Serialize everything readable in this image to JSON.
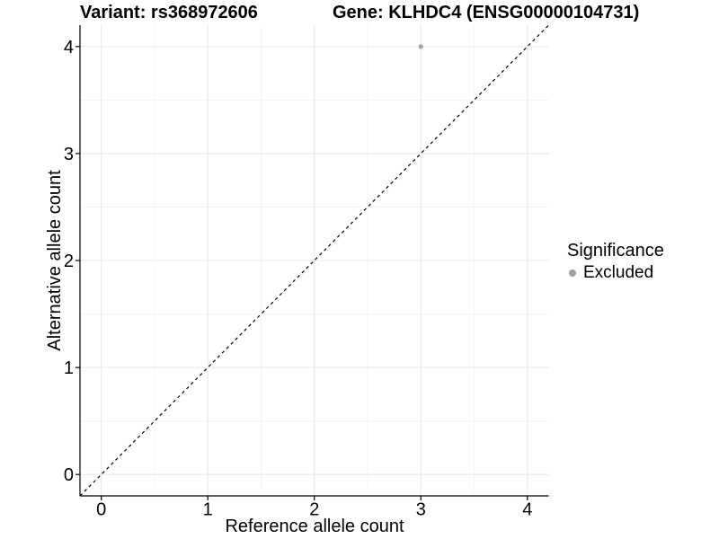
{
  "titles": {
    "left": "Variant: rs368972606",
    "right": "Gene: KLHDC4 (ENSG00000104731)"
  },
  "chart_data": {
    "type": "scatter",
    "xlabel": "Reference allele count",
    "ylabel": "Alternative allele count",
    "xticks": [
      0,
      1,
      2,
      3,
      4
    ],
    "yticks": [
      0,
      1,
      2,
      3,
      4
    ],
    "xlim": [
      -0.2,
      4.2
    ],
    "ylim": [
      -0.2,
      4.2
    ],
    "minor_x": [
      0.5,
      1.5,
      2.5,
      3.5
    ],
    "minor_y": [
      0.5,
      1.5,
      2.5,
      3.5
    ],
    "grid": "major+minor",
    "identity_line": {
      "from": [
        -0.2,
        -0.2
      ],
      "to": [
        4.2,
        4.2
      ],
      "style": "dashed",
      "color": "#000000"
    },
    "series": [
      {
        "name": "Excluded",
        "color": "#a6a6a6",
        "points": [
          {
            "x": 3,
            "y": 4
          }
        ]
      }
    ],
    "legend": {
      "title": "Significance",
      "position": "right",
      "items": [
        {
          "label": "Excluded",
          "color": "#a0a0a0"
        }
      ]
    },
    "colors": {
      "grid_major": "#e8e8e8",
      "grid_minor": "#f3f3f3",
      "axis": "#000000",
      "tick_text": "#000000"
    }
  }
}
